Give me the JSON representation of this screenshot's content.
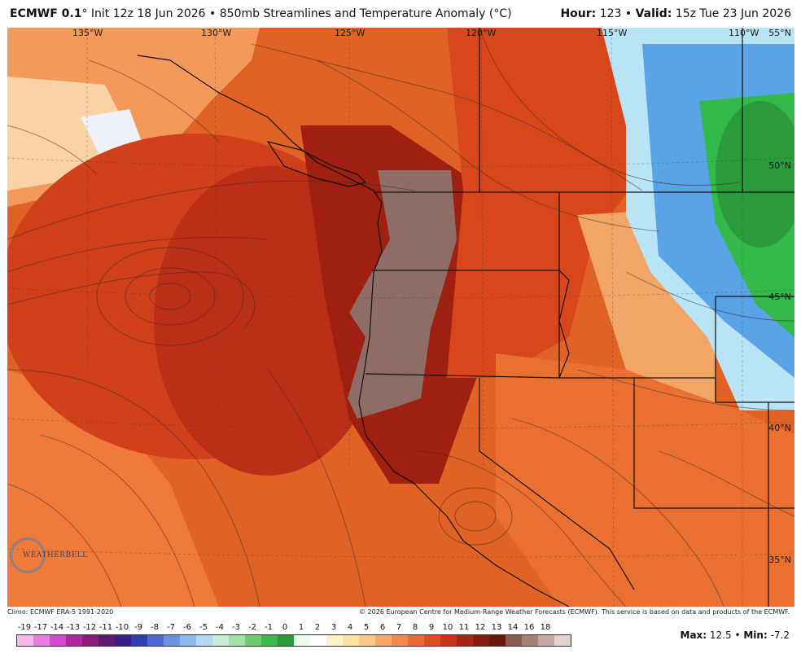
{
  "header": {
    "model": "ECMWF 0.1",
    "init": "° Init 12z 18 Jun 2026",
    "product": "850mb Streamlines and Temperature Anomaly (°C)",
    "hour_label": "Hour:",
    "hour_value": "123",
    "valid_label": "Valid:",
    "valid_value": "15z Tue 23 Jun 2026"
  },
  "map": {
    "lon_labels": [
      "135°W",
      "130°W",
      "125°W",
      "120°W",
      "115°W",
      "110°W"
    ],
    "lat_labels": [
      "55°N",
      "50°N",
      "45°N",
      "40°N",
      "35°N"
    ]
  },
  "logo": {
    "text": "WEATHERBELL",
    "icon": "weatherbell-logo"
  },
  "footer": {
    "climo": "Climo: ECMWF ERA-5 1991-2020",
    "copyright": "© 2026 European Centre for Medium-Range Weather Forecasts (ECMWF). This service is based on data and products of the ECMWF."
  },
  "legend": {
    "ticks": [
      "-19",
      "-17",
      "-14",
      "-13",
      "-12",
      "-11",
      "-10",
      "-9",
      "-8",
      "-7",
      "-6",
      "-5",
      "-4",
      "-3",
      "-2",
      "-1",
      "0",
      "1",
      "2",
      "3",
      "4",
      "5",
      "6",
      "7",
      "8",
      "9",
      "10",
      "11",
      "12",
      "13",
      "14",
      "16",
      "18"
    ],
    "colors": [
      "#f7b8f0",
      "#e87ee0",
      "#d24bcf",
      "#b0289f",
      "#8a1c7a",
      "#5e1a72",
      "#3b1d8a",
      "#2f3fb0",
      "#4a6ad0",
      "#6d93e0",
      "#8fb8ec",
      "#b3d6f2",
      "#c7ecd9",
      "#a3e0a5",
      "#6ccc6e",
      "#3db84a",
      "#2a9a3a",
      "#e9ffe9",
      "#ffffff",
      "#fff2c7",
      "#fde2a3",
      "#fbc98a",
      "#f7a96a",
      "#f28a4f",
      "#ea6b36",
      "#dd4c22",
      "#c8351a",
      "#a72714",
      "#861c10",
      "#6a150e",
      "#8a5b52",
      "#a88078",
      "#c6a8a0",
      "#e4d2cc"
    ],
    "max_label": "Max:",
    "max_value": "12.5",
    "min_label": "Min:",
    "min_value": "-7.2"
  }
}
